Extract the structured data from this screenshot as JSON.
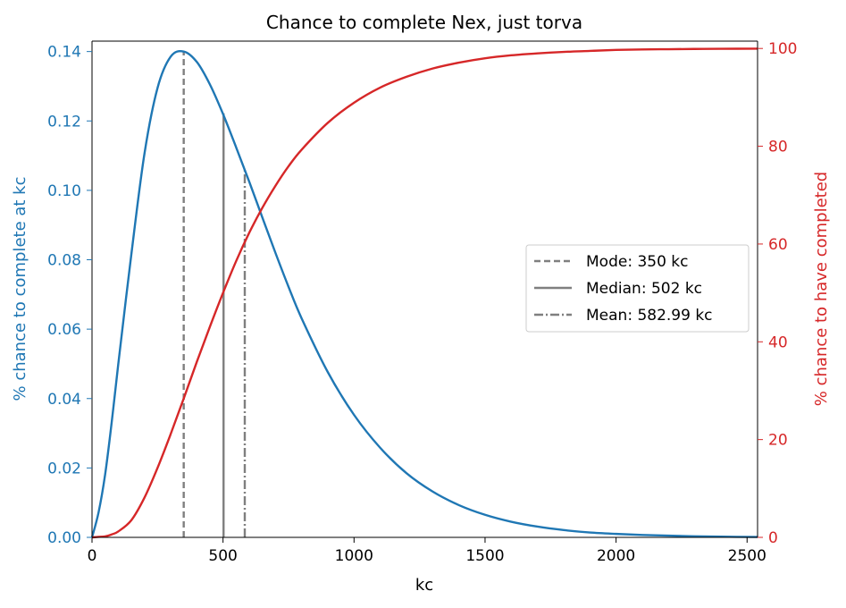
{
  "chart_data": {
    "type": "line",
    "title": "Chance to complete Nex, just torva",
    "xlabel": "kc",
    "ylabel_left": "% chance to complete at kc",
    "ylabel_right": "% chance to have completed",
    "xlim": [
      0,
      2540
    ],
    "ylim_left": [
      0,
      0.143
    ],
    "ylim_right": [
      0,
      101.5
    ],
    "xticks": [
      "0",
      "500",
      "1000",
      "1500",
      "2000",
      "2500"
    ],
    "yticks_left": [
      "0.00",
      "0.02",
      "0.04",
      "0.06",
      "0.08",
      "0.10",
      "0.12",
      "0.14"
    ],
    "yticks_right": [
      "0",
      "20",
      "40",
      "60",
      "80",
      "100"
    ],
    "colors": {
      "left": "#1f77b4",
      "right": "#d62728",
      "markers": "#7f7f7f"
    },
    "grid": false,
    "legend_position": "center-right",
    "series": [
      {
        "axis": "left",
        "x": [
          0,
          25,
          50,
          75,
          100,
          150,
          200,
          250,
          300,
          350,
          400,
          450,
          500,
          550,
          600,
          650,
          700,
          750,
          800,
          900,
          1000,
          1100,
          1200,
          1300,
          1400,
          1500,
          1600,
          1700,
          1800,
          1900,
          2000,
          2100,
          2200,
          2300,
          2400,
          2540
        ],
        "values": [
          0,
          0.0072,
          0.0181,
          0.0331,
          0.0498,
          0.0815,
          0.1105,
          0.1295,
          0.1385,
          0.14,
          0.137,
          0.1305,
          0.122,
          0.1124,
          0.1025,
          0.0922,
          0.082,
          0.0722,
          0.0631,
          0.0476,
          0.0353,
          0.0258,
          0.0185,
          0.0132,
          0.0093,
          0.0065,
          0.0045,
          0.0031,
          0.0021,
          0.0014,
          0.001,
          0.0007,
          0.0005,
          0.0003,
          0.0002,
          0.0001
        ]
      },
      {
        "axis": "right",
        "x": [
          0,
          25,
          50,
          75,
          100,
          150,
          200,
          250,
          300,
          350,
          400,
          450,
          500,
          550,
          600,
          650,
          700,
          750,
          800,
          900,
          1000,
          1100,
          1200,
          1300,
          1400,
          1500,
          1600,
          1700,
          1800,
          1900,
          2000,
          2100,
          2200,
          2300,
          2400,
          2540
        ],
        "values": [
          0,
          0.1,
          0.2,
          0.6,
          1.2,
          3.5,
          8.1,
          14.2,
          21.1,
          28.4,
          35.9,
          43.1,
          50,
          56.5,
          62.3,
          67.4,
          71.9,
          75.9,
          79.3,
          84.8,
          88.9,
          92,
          94.2,
          95.9,
          97.1,
          98,
          98.6,
          99,
          99.3,
          99.5,
          99.7,
          99.8,
          99.85,
          99.9,
          99.93,
          99.96
        ]
      }
    ],
    "markers": [
      {
        "label": "Mode: 350 kc",
        "x": 350,
        "style": "dashed",
        "top_value": 0.14
      },
      {
        "label": "Median: 502 kc",
        "x": 502,
        "style": "solid",
        "top_value": 0.1222
      },
      {
        "label": "Mean: 582.99 kc",
        "x": 582.99,
        "style": "dashdot",
        "top_value": 0.106
      }
    ]
  }
}
